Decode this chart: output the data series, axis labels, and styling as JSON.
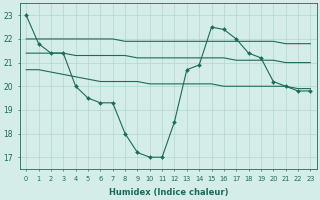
{
  "xlabel": "Humidex (Indice chaleur)",
  "bg_color": "#d4ede8",
  "grid_color": "#b0d8d0",
  "line_color": "#1a6b5a",
  "main_line": [
    23.0,
    21.8,
    21.4,
    21.4,
    20.0,
    19.5,
    19.3,
    19.3,
    18.0,
    17.2,
    17.0,
    17.0,
    18.5,
    20.7,
    20.9,
    22.5,
    22.4,
    22.0,
    21.4,
    21.2,
    20.2,
    20.0,
    19.8,
    19.8
  ],
  "upper_line": [
    22.0,
    22.0,
    22.0,
    22.0,
    22.0,
    22.0,
    22.0,
    22.0,
    21.9,
    21.9,
    21.9,
    21.9,
    21.9,
    21.9,
    21.9,
    21.9,
    21.9,
    21.9,
    21.9,
    21.9,
    21.9,
    21.8,
    21.8,
    21.8
  ],
  "mid_line": [
    21.4,
    21.4,
    21.4,
    21.4,
    21.3,
    21.3,
    21.3,
    21.3,
    21.3,
    21.2,
    21.2,
    21.2,
    21.2,
    21.2,
    21.2,
    21.2,
    21.2,
    21.1,
    21.1,
    21.1,
    21.1,
    21.0,
    21.0,
    21.0
  ],
  "lower_line": [
    20.7,
    20.7,
    20.6,
    20.5,
    20.4,
    20.3,
    20.2,
    20.2,
    20.2,
    20.2,
    20.1,
    20.1,
    20.1,
    20.1,
    20.1,
    20.1,
    20.0,
    20.0,
    20.0,
    20.0,
    20.0,
    20.0,
    19.9,
    19.9
  ],
  "ylim": [
    16.5,
    23.5
  ],
  "yticks": [
    17,
    18,
    19,
    20,
    21,
    22,
    23
  ],
  "xticks": [
    0,
    1,
    2,
    3,
    4,
    5,
    6,
    7,
    8,
    9,
    10,
    11,
    12,
    13,
    14,
    15,
    16,
    17,
    18,
    19,
    20,
    21,
    22,
    23
  ]
}
